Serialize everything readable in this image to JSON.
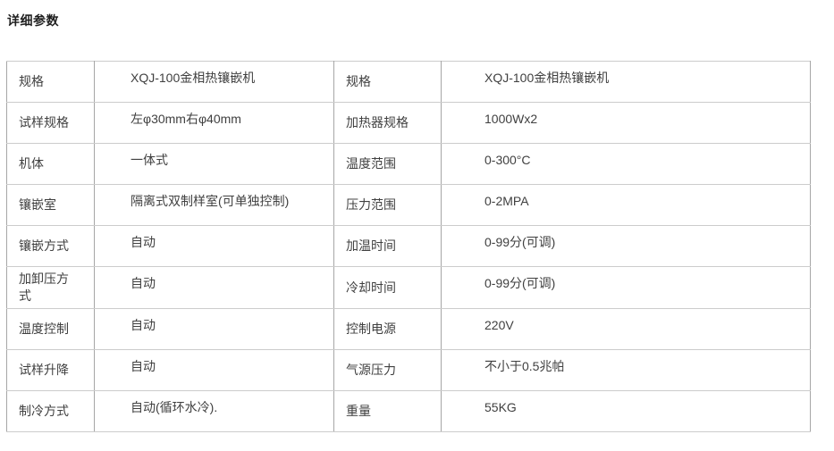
{
  "page": {
    "title": "详细参数"
  },
  "colors": {
    "outer_border": "#8f8f8f",
    "inner_vertical_border": "#a6a6a6",
    "inner_horizontal_border": "#cccccc",
    "cell_text": "#404040",
    "title_text": "#1f1f1f",
    "background": "#ffffff"
  },
  "spec_table": {
    "columns": [
      "参数名",
      "参数值",
      "参数名",
      "参数值"
    ],
    "rows": [
      {
        "label1": "规格",
        "value1": "XQJ-100金相热镶嵌机",
        "label2": "规格",
        "value2": "XQJ-100金相热镶嵌机"
      },
      {
        "label1": "试样规格",
        "value1": "左φ30mm右φ40mm",
        "label2": "加热器规格",
        "value2": "1000Wx2"
      },
      {
        "label1": "机体",
        "value1": "一体式",
        "label2": "温度范围",
        "value2": "0-300°C"
      },
      {
        "label1": "镶嵌室",
        "value1": "隔离式双制样室(可单独控制)",
        "label2": "压力范围",
        "value2": "0-2MPA"
      },
      {
        "label1": "镶嵌方式",
        "value1": "自动",
        "label2": "加温时间",
        "value2": "0-99分(可调)"
      },
      {
        "label1": "加卸压方式",
        "value1": "自动",
        "label2": "冷却时间",
        "value2": "0-99分(可调)"
      },
      {
        "label1": "温度控制",
        "value1": "自动",
        "label2": "控制电源",
        "value2": "220V"
      },
      {
        "label1": "试样升降",
        "value1": "自动",
        "label2": "气源压力",
        "value2": "不小于0.5兆帕"
      },
      {
        "label1": "制冷方式",
        "value1": "自动(循环水冷).",
        "label2": "重量",
        "value2": "55KG"
      }
    ]
  }
}
